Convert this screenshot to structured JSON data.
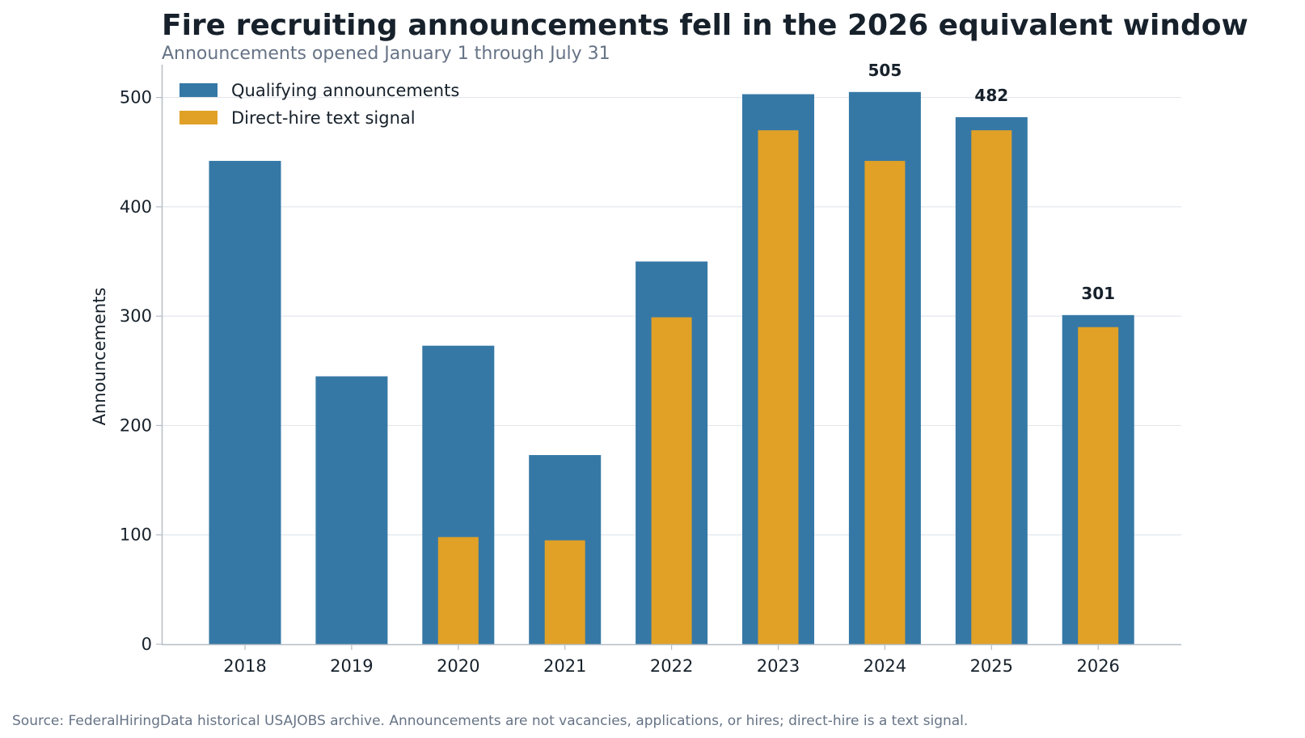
{
  "chart_data": {
    "type": "bar",
    "title": "Fire recruiting announcements fell in the 2026 equivalent window",
    "subtitle": "Announcements opened January 1 through July 31",
    "xlabel": "",
    "ylabel": "Announcements",
    "ylim": [
      0,
      530
    ],
    "yticks": [
      0,
      100,
      200,
      300,
      400,
      500
    ],
    "categories": [
      "2018",
      "2019",
      "2020",
      "2021",
      "2022",
      "2023",
      "2024",
      "2025",
      "2026"
    ],
    "series": [
      {
        "name": "Qualifying announcements",
        "color": "#3578a6",
        "values": [
          442,
          245,
          273,
          173,
          350,
          503,
          505,
          482,
          301
        ]
      },
      {
        "name": "Direct-hire text signal",
        "color": "#e0a126",
        "values": [
          0,
          0,
          98,
          95,
          299,
          470,
          442,
          470,
          290
        ]
      }
    ],
    "data_labels": [
      {
        "category": "2024",
        "value": 505,
        "text": "505"
      },
      {
        "category": "2025",
        "value": 482,
        "text": "482"
      },
      {
        "category": "2026",
        "value": 301,
        "text": "301"
      }
    ],
    "grid": true,
    "legend_position": "top-left",
    "source": "Source: FederalHiringData historical USAJOBS archive. Announcements are not vacancies, applications, or hires; direct-hire is a text signal."
  }
}
